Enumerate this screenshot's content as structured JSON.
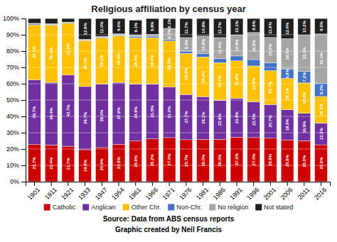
{
  "chart_data": {
    "type": "bar",
    "stacked": true,
    "title": "Religious affiliation by census year",
    "annotations": [
      "Source: Data from ABS census reports",
      "Graphic created by Neil Francis"
    ],
    "categories": [
      "1901",
      "1911",
      "1921",
      "1933",
      "1947",
      "1954",
      "1961",
      "1966",
      "1971",
      "1976",
      "1981",
      "1986",
      "1991",
      "1996",
      "2001",
      "2006",
      "2011",
      "2016"
    ],
    "series": [
      {
        "name": "Catholic",
        "color": "#cc0000",
        "values": [
          22.7,
          22.4,
          21.7,
          19.6,
          20.9,
          22.9,
          24.9,
          26.2,
          27.0,
          25.7,
          26.0,
          26.0,
          27.3,
          27.0,
          26.6,
          25.6,
          25.0,
          22.6
        ],
        "value_labels": [
          "22.7%",
          "22.4%",
          "21.7%",
          "19.6%",
          "20.9%",
          "22.9%",
          "24.9%",
          "26.2%",
          "27.0%",
          "25.7%",
          "26.0%",
          "26.0%",
          "27.3%",
          "27.0%",
          "26.6%",
          "25.6%",
          "25.0%",
          "22.6%"
        ]
      },
      {
        "name": "Anglican",
        "color": "#7030a0",
        "values": [
          39.7,
          38.4,
          43.7,
          38.7,
          39.0,
          37.9,
          34.9,
          33.5,
          31.0,
          27.7,
          26.1,
          23.9,
          23.8,
          22.0,
          20.7,
          18.5,
          16.9,
          13.3
        ],
        "value_labels": [
          "39.7%",
          "38.4%",
          "43.7%",
          "38.7%",
          "39.0%",
          "37.9%",
          "34.9%",
          "33.5%",
          "31.0%",
          "27.7%",
          "26.1%",
          "23.9%",
          "23.8%",
          "22.0%",
          "20.7%",
          "18.5%",
          "16.9%",
          "13.3%"
        ]
      },
      {
        "name": "Other Chr.",
        "color": "#ffc000",
        "values": [
          33.7,
          35.1,
          31.6,
          28.1,
          28.1,
          28.5,
          28.4,
          28.5,
          28.2,
          25.2,
          24.3,
          23.0,
          22.9,
          21.9,
          20.7,
          19.1,
          18.6,
          16.3
        ],
        "value_labels": [
          "33.7%",
          "35.1%",
          "31.6%",
          "28.1%",
          "28.1%",
          "28.5%",
          "28.4%",
          "28.5%",
          "28.2%",
          "25.2%",
          "24.3%",
          "23.0%",
          "22.9%",
          "21.9%",
          "20.7%",
          "19.1%",
          "18.6%",
          "16.3%"
        ]
      },
      {
        "name": "Non-Chr.",
        "color": "#4472c4",
        "values": [
          0.5,
          0.5,
          0.4,
          0.4,
          0.5,
          0.6,
          0.8,
          0.9,
          1.0,
          1.4,
          2.0,
          2.5,
          3.0,
          3.9,
          4.9,
          5.9,
          7.2,
          8.2
        ],
        "value_labels": [
          null,
          null,
          null,
          null,
          null,
          null,
          null,
          null,
          null,
          null,
          null,
          null,
          null,
          null,
          null,
          "5.9%",
          "7.2%",
          "8.2%"
        ]
      },
      {
        "name": "No religion",
        "color": "#a5a5a5",
        "values": [
          0.4,
          0.4,
          0.4,
          0.4,
          0.5,
          0.7,
          0.9,
          1.1,
          6.7,
          8.3,
          10.8,
          12.9,
          12.9,
          16.6,
          15.5,
          18.5,
          22.1,
          30.1
        ],
        "value_labels": [
          null,
          null,
          null,
          null,
          null,
          null,
          null,
          null,
          "6.7%",
          "8.3%",
          "10.8%",
          "12.9%",
          "12.9%",
          "16.6%",
          "15.5%",
          "18.5%",
          "22.1%",
          "30.1%"
        ]
      },
      {
        "name": "Not stated",
        "color": "#1f1f1f",
        "values": [
          3.0,
          3.2,
          2.2,
          12.8,
          11.0,
          9.4,
          9.1,
          9.8,
          6.1,
          11.7,
          10.8,
          11.7,
          10.1,
          8.6,
          11.6,
          12.4,
          10.2,
          9.5
        ],
        "value_labels": [
          null,
          null,
          null,
          "12.8%",
          "11.0%",
          "9.4%",
          "9.1%",
          "9.8%",
          "6.1%",
          "11.7%",
          "10.8%",
          "11.7%",
          "10.1%",
          "8.6%",
          "11.6%",
          "12.4%",
          "10.2%",
          "9.5%"
        ]
      }
    ],
    "ylim": [
      0,
      100
    ],
    "yticks": [
      {
        "value": 0,
        "label": "0%"
      },
      {
        "value": 10,
        "label": "10%"
      },
      {
        "value": 20,
        "label": "20%"
      },
      {
        "value": 30,
        "label": "30%"
      },
      {
        "value": 40,
        "label": "40%"
      },
      {
        "value": 50,
        "label": "50%"
      },
      {
        "value": 60,
        "label": "60%"
      },
      {
        "value": 70,
        "label": "70%"
      },
      {
        "value": 80,
        "label": "80%"
      },
      {
        "value": 90,
        "label": "90%"
      },
      {
        "value": 100,
        "label": "100%"
      }
    ],
    "grid": true,
    "data_labels": true,
    "legend": "bottom"
  }
}
